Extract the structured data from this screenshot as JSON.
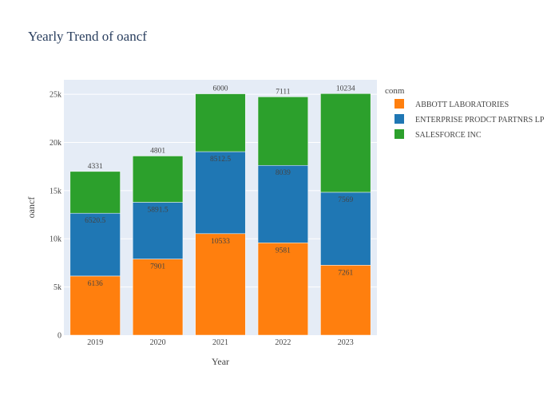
{
  "chart_data": {
    "type": "bar",
    "stacked": true,
    "title": "Yearly Trend of oancf",
    "xlabel": "Year",
    "ylabel": "oancf",
    "categories": [
      "2019",
      "2020",
      "2021",
      "2022",
      "2023"
    ],
    "ylim": [
      0,
      26500
    ],
    "yticks": [
      0,
      5000,
      10000,
      15000,
      20000,
      25000
    ],
    "ytick_labels": [
      "0",
      "5k",
      "10k",
      "15k",
      "20k",
      "25k"
    ],
    "grid": true,
    "legend": {
      "title": "conm",
      "placement": "top-right"
    },
    "series": [
      {
        "name": "ABBOTT LABORATORIES",
        "color": "#ff7f0e",
        "values": [
          6136,
          7901,
          10533,
          9581,
          7261
        ],
        "labels": [
          "6136",
          "7901",
          "10533",
          "9581",
          "7261"
        ],
        "label_position": "inside"
      },
      {
        "name": "ENTERPRISE PRODCT PARTNRS LP",
        "color": "#1f77b4",
        "values": [
          6520.5,
          5891.5,
          8512.5,
          8039,
          7569
        ],
        "labels": [
          "6520.5",
          "5891.5",
          "8512.5",
          "8039",
          "7569"
        ],
        "label_position": "inside"
      },
      {
        "name": "SALESFORCE INC",
        "color": "#2ca02c",
        "values": [
          4331,
          4801,
          6000,
          7111,
          10234
        ],
        "labels": [
          "4331",
          "4801",
          "6000",
          "7111",
          "10234"
        ],
        "label_position": "outside"
      }
    ]
  },
  "colors": {
    "plot_bg": "#e5ecf6",
    "grid": "#ffffff",
    "inside_label": "#444444",
    "outside_label": "#444444",
    "inside_label_dark": "#ffffff"
  }
}
